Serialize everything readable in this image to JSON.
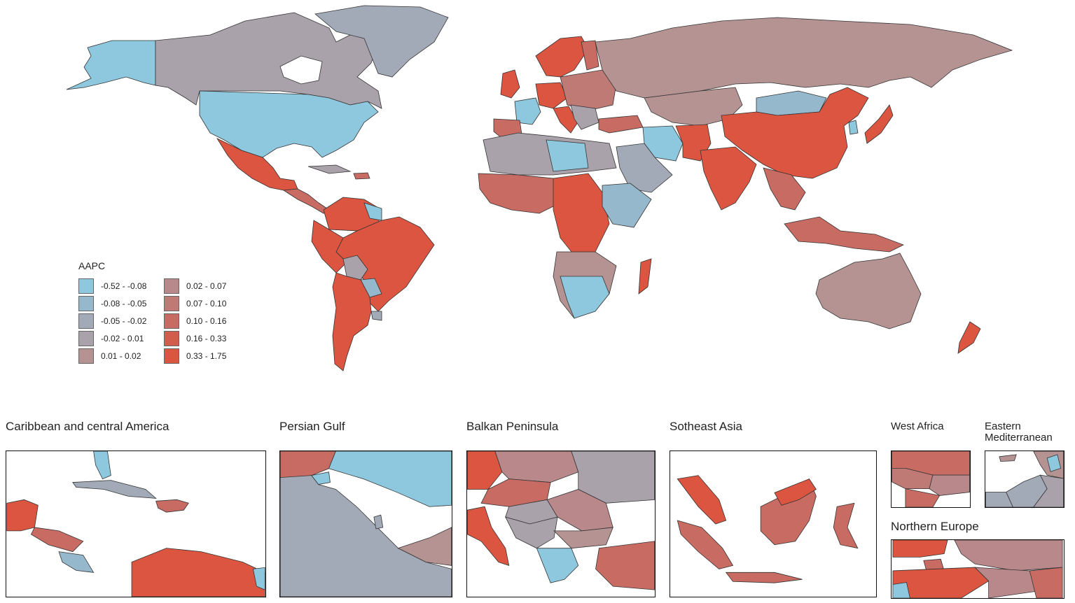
{
  "legend": {
    "title": "AAPC",
    "items": [
      {
        "label": "-0.52 - -0.08",
        "color": "#8ec8df"
      },
      {
        "label": "-0.08 - -0.05",
        "color": "#96b8cc"
      },
      {
        "label": "-0.05 - -0.02",
        "color": "#a2aab8"
      },
      {
        "label": "-0.02 - 0.01",
        "color": "#aaa2aa"
      },
      {
        "label": "0.01 - 0.02",
        "color": "#b59393"
      },
      {
        "label": "0.02 - 0.07",
        "color": "#b9888a"
      },
      {
        "label": "0.07 - 0.10",
        "color": "#bf7a76"
      },
      {
        "label": "0.10 - 0.16",
        "color": "#c86b62"
      },
      {
        "label": "0.16 - 0.33",
        "color": "#d35d4c"
      },
      {
        "label": "0.33 - 1.75",
        "color": "#dc5540"
      }
    ]
  },
  "insets": [
    {
      "title": "Caribbean and central America"
    },
    {
      "title": "Persian Gulf"
    },
    {
      "title": "Balkan Peninsula"
    },
    {
      "title": "Sotheast Asia"
    },
    {
      "title": "West Africa"
    },
    {
      "title": "Eastern\nMediterranean"
    },
    {
      "title": "Northern Europe"
    }
  ]
}
